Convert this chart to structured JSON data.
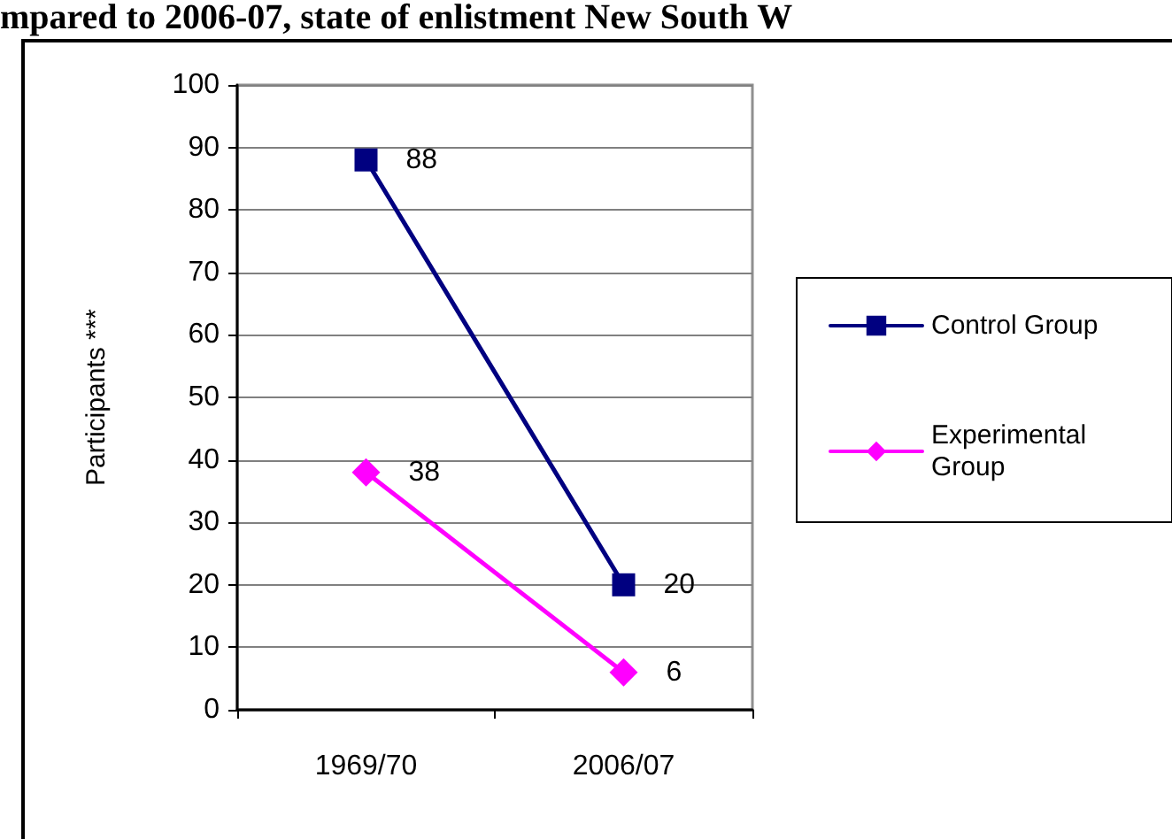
{
  "chart_data": {
    "type": "line",
    "title": "mpared to 2006-07, state of enlistment New South W",
    "ylabel": "Participants ***",
    "categories": [
      "1969/70",
      "2006/07"
    ],
    "series": [
      {
        "name": "Control Group",
        "color": "#000080",
        "marker": "square",
        "values": [
          88,
          20
        ]
      },
      {
        "name": "Experimental Group",
        "color": "#ff00ff",
        "marker": "diamond",
        "values": [
          38,
          6
        ]
      }
    ],
    "ylim": [
      0,
      100
    ],
    "yticks": [
      0,
      10,
      20,
      30,
      40,
      50,
      60,
      70,
      80,
      90,
      100
    ],
    "grid": "y",
    "legend": "right",
    "data_labels": true,
    "line_style": "solid"
  }
}
